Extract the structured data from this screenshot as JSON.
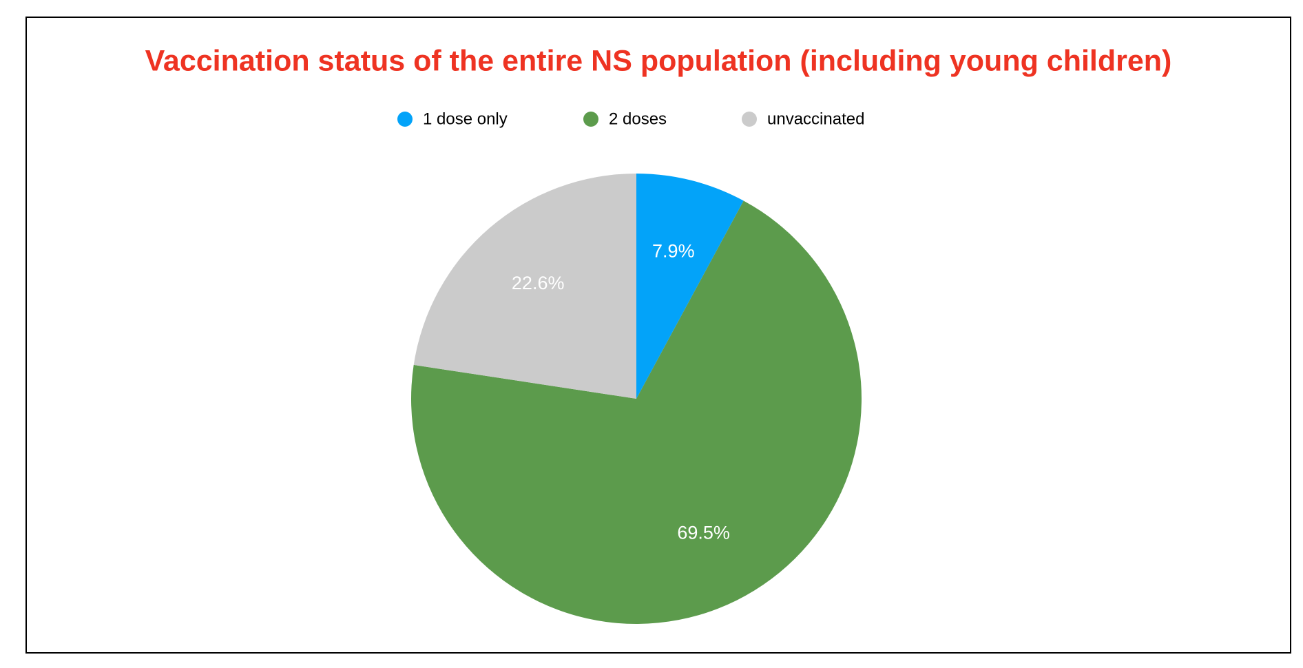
{
  "chart_data": {
    "type": "pie",
    "title": "Vaccination status of the entire NS population (including young children)",
    "categories": [
      "1 dose only",
      "2 doses",
      "unvaccinated"
    ],
    "values": [
      7.9,
      69.5,
      22.6
    ],
    "value_labels": [
      "7.9%",
      "69.5%",
      "22.6%"
    ],
    "colors": [
      "#03a3f9",
      "#5c9b4c",
      "#cbcbcb"
    ],
    "legend": "top"
  }
}
